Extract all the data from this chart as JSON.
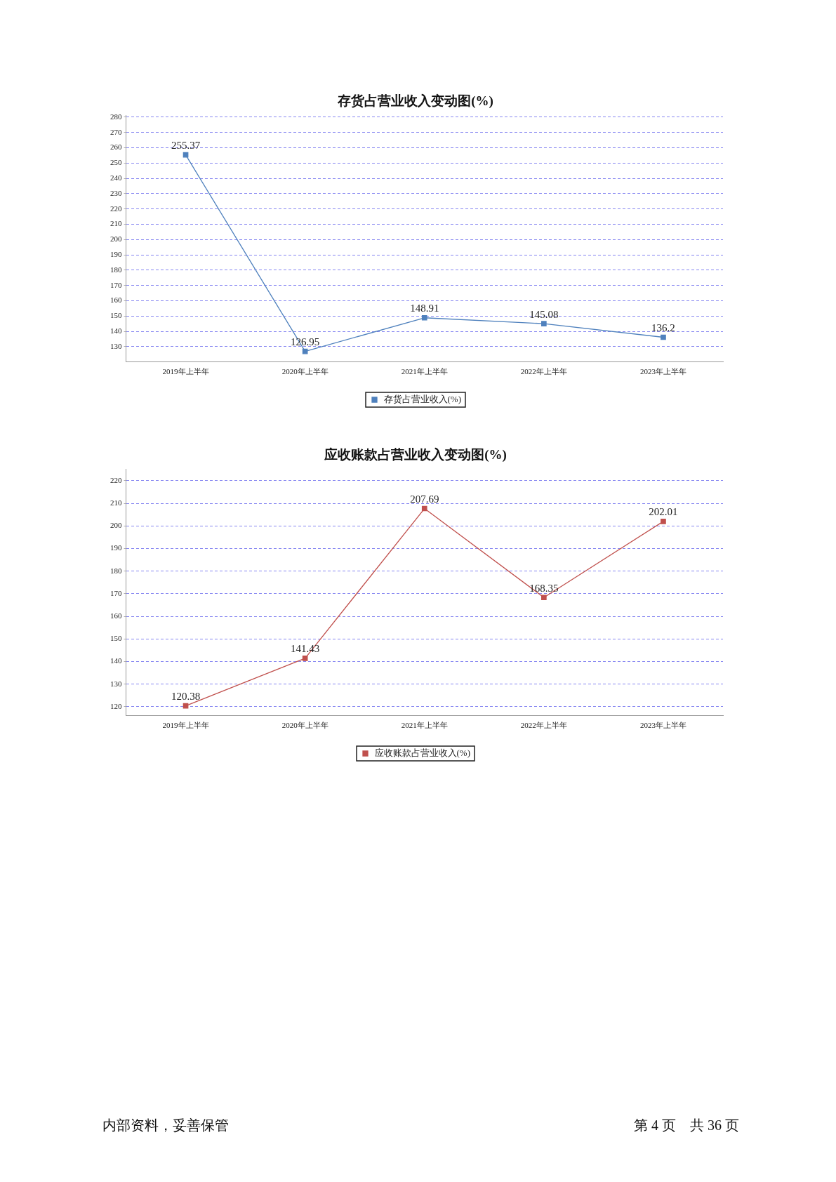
{
  "chart_data": [
    {
      "type": "line",
      "title": "存货占营业收入变动图(%)",
      "categories": [
        "2019年上半年",
        "2020年上半年",
        "2021年上半年",
        "2022年上半年",
        "2023年上半年"
      ],
      "series": [
        {
          "name": "存货占营业收入(%)",
          "color": "#4f81bd",
          "values": [
            255.37,
            126.95,
            148.91,
            145.08,
            136.2
          ]
        }
      ],
      "ylim": [
        120,
        281
      ],
      "yticks": [
        130,
        140,
        150,
        160,
        170,
        180,
        190,
        200,
        210,
        220,
        230,
        240,
        250,
        260,
        270,
        280
      ],
      "grid": "y",
      "legend": "bottom",
      "marker": "square",
      "data_labels": true
    },
    {
      "type": "line",
      "title": "应收账款占营业收入变动图(%)",
      "categories": [
        "2019年上半年",
        "2020年上半年",
        "2021年上半年",
        "2022年上半年",
        "2023年上半年"
      ],
      "series": [
        {
          "name": "应收账款占营业收入(%)",
          "color": "#c0504d",
          "values": [
            120.38,
            141.43,
            207.69,
            168.35,
            202.01
          ]
        }
      ],
      "ylim": [
        116,
        225
      ],
      "yticks": [
        120,
        130,
        140,
        150,
        160,
        170,
        180,
        190,
        200,
        210,
        220
      ],
      "grid": "y",
      "legend": "bottom",
      "marker": "square",
      "data_labels": true,
      "annotations": [
        "内部资料，妥善保管",
        "第 4 页　共 36 页"
      ]
    }
  ]
}
